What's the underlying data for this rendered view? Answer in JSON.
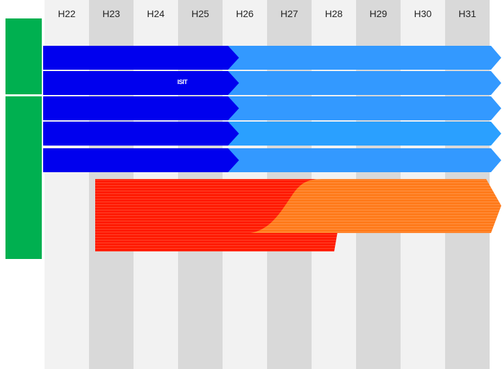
{
  "columns": [
    "H22",
    "H23",
    "H24",
    "H25",
    "H26",
    "H27",
    "H28",
    "H29",
    "H30",
    "H31"
  ],
  "arrows": [
    {
      "label": ""
    },
    {
      "label": "ISIT"
    },
    {
      "label": ""
    },
    {
      "label": ""
    },
    {
      "label": ""
    }
  ],
  "colors": {
    "stripe_light": "#f2f2f2",
    "stripe_dark": "#d9d9d9",
    "sidebar_green": "#00b050",
    "arrow_dark_blue": "#0000ee",
    "arrow_light_blue": "#3399ff",
    "ribbon_red": "#ff1a00",
    "ribbon_orange": "#ff7a1a"
  }
}
